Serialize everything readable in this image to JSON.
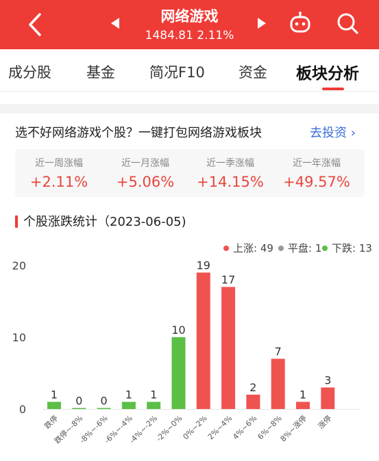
{
  "header": {
    "title": "网络游戏",
    "subtitle": "1484.81 2.11%",
    "bg_color": "#ef3b36"
  },
  "tabs": [
    {
      "label": "成分股"
    },
    {
      "label": "基金"
    },
    {
      "label": "简况F10"
    },
    {
      "label": "资金"
    },
    {
      "label": "板块分析",
      "active": true
    }
  ],
  "promo": {
    "text": "选不好网络游戏个股？一键打包网络游戏板块",
    "link": "去投资 ›"
  },
  "stats": [
    {
      "label": "近一周涨幅",
      "value": "+2.11%"
    },
    {
      "label": "近一月涨幅",
      "value": "+5.06%"
    },
    {
      "label": "近一季涨幅",
      "value": "+14.15%"
    },
    {
      "label": "近一年涨幅",
      "value": "+49.57%"
    }
  ],
  "section": {
    "title": "个股涨跌统计（2023-06-05)"
  },
  "legend": {
    "up": "上涨: 49",
    "flat": "平盘: 1",
    "down": "下跌: 13"
  },
  "colors": {
    "up": "#ef5350",
    "flat": "#999999",
    "down": "#5bbf45",
    "accent": "#ef3b36"
  },
  "chart_data": {
    "type": "bar",
    "categories": [
      "跌停",
      "跌停~-8%",
      "-8%~-6%",
      "-6%~-4%",
      "-4%~-2%",
      "-2%~0%",
      "0%~2%",
      "2%~4%",
      "4%~6%",
      "6%~8%",
      "8%~涨停",
      "涨停"
    ],
    "values": [
      1,
      0,
      0,
      1,
      1,
      10,
      19,
      17,
      2,
      7,
      1,
      3
    ],
    "colors": [
      "down",
      "down",
      "down",
      "down",
      "down",
      "down",
      "up",
      "up",
      "up",
      "up",
      "up",
      "up"
    ],
    "yticks": [
      0,
      10,
      20
    ],
    "ylim": [
      0,
      20
    ],
    "grid": false
  }
}
